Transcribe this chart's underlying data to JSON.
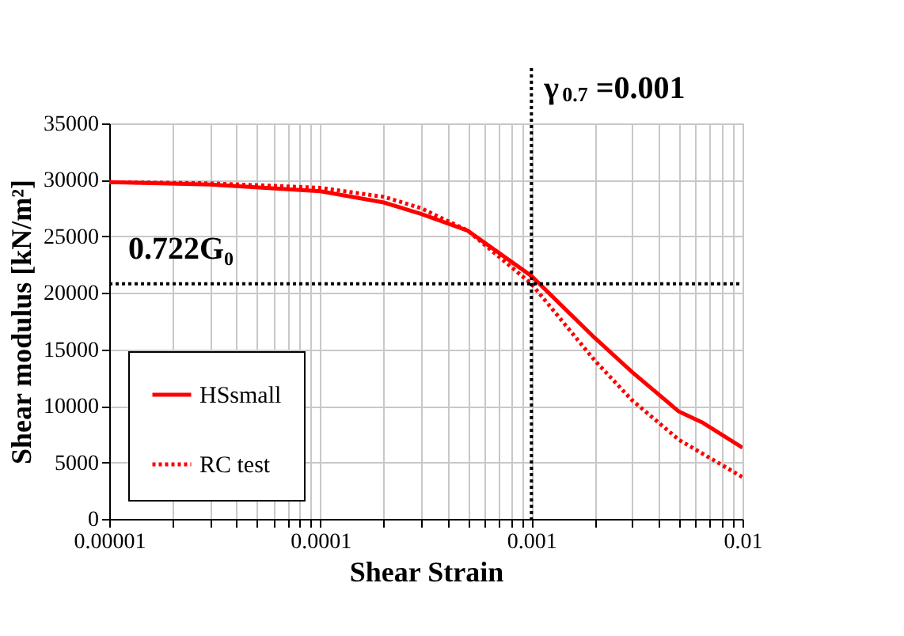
{
  "chart_data": {
    "type": "line",
    "xlabel": "Shear Strain",
    "ylabel": "Shear modulus [kN/m²]",
    "log": "x",
    "xlim": [
      1e-05,
      0.01
    ],
    "xticks": [
      {
        "value": 1e-05,
        "label": "0.00001"
      },
      {
        "value": 2e-05,
        "label": null
      },
      {
        "value": 3e-05,
        "label": null
      },
      {
        "value": 4e-05,
        "label": null
      },
      {
        "value": 5e-05,
        "label": null
      },
      {
        "value": 6e-05,
        "label": null
      },
      {
        "value": 7e-05,
        "label": null
      },
      {
        "value": 8e-05,
        "label": null
      },
      {
        "value": 9e-05,
        "label": null
      },
      {
        "value": 0.0001,
        "label": "0.0001"
      },
      {
        "value": 0.0002,
        "label": null
      },
      {
        "value": 0.0003,
        "label": null
      },
      {
        "value": 0.0004,
        "label": null
      },
      {
        "value": 0.0005,
        "label": null
      },
      {
        "value": 0.0006,
        "label": null
      },
      {
        "value": 0.0007,
        "label": null
      },
      {
        "value": 0.0008,
        "label": null
      },
      {
        "value": 0.0009,
        "label": null
      },
      {
        "value": 0.001,
        "label": "0.001"
      },
      {
        "value": 0.002,
        "label": null
      },
      {
        "value": 0.003,
        "label": null
      },
      {
        "value": 0.004,
        "label": null
      },
      {
        "value": 0.005,
        "label": null
      },
      {
        "value": 0.006,
        "label": null
      },
      {
        "value": 0.007,
        "label": null
      },
      {
        "value": 0.008,
        "label": null
      },
      {
        "value": 0.009,
        "label": null
      },
      {
        "value": 0.01,
        "label": "0.01"
      }
    ],
    "ylim": [
      0,
      35000
    ],
    "yticks": [
      0,
      5000,
      10000,
      15000,
      20000,
      25000,
      30000,
      35000
    ],
    "grid": true,
    "legend": "bottom left",
    "series": [
      {
        "name": "HSsmall",
        "color": "#ff0000",
        "line_style": "solid",
        "x": [
          1e-05,
          3e-05,
          0.0001,
          0.0002,
          0.0003,
          0.0005,
          0.001,
          0.002,
          0.003,
          0.005,
          0.0065,
          0.01
        ],
        "values": [
          29800,
          29600,
          29000,
          28000,
          27000,
          25500,
          21500,
          16000,
          13000,
          9500,
          8500,
          6300
        ]
      },
      {
        "name": "RC test",
        "color": "#ff0000",
        "line_style": "dotted",
        "x": [
          1e-05,
          3e-05,
          0.0001,
          0.0002,
          0.0003,
          0.0005,
          0.001,
          0.002,
          0.003,
          0.005,
          0.01
        ],
        "values": [
          29800,
          29700,
          29300,
          28500,
          27500,
          25500,
          20800,
          14000,
          10500,
          7000,
          3700
        ]
      }
    ],
    "ref_lines": [
      {
        "axis": "x",
        "value": 0.001,
        "label": "γ$_{0.7}$=0.001",
        "color": "#000000",
        "line_style": "dotted"
      },
      {
        "axis": "y",
        "value": 20800,
        "label": "0.722G₀",
        "color": "#000000",
        "line_style": "dotted"
      }
    ]
  }
}
